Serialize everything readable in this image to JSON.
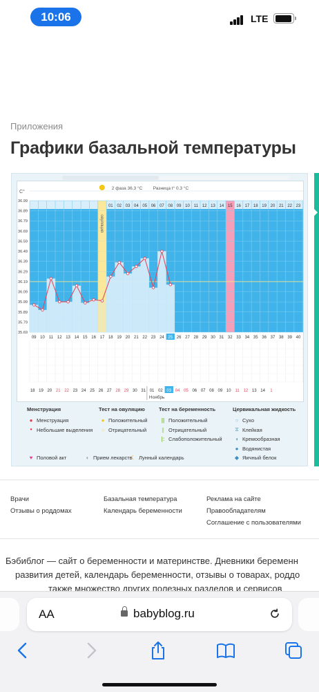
{
  "status": {
    "time": "10:06",
    "network": "LTE"
  },
  "breadcrumb": "Приложения",
  "title": "Графики базальной температуры",
  "chart": {
    "unit": "C°",
    "phase_label": "2 фаза",
    "phase_temp": "36.3 °C",
    "diff_label": "Разница t°",
    "diff_value": "0.3 °C",
    "ovulation_label": "овуляция",
    "month_label": "Ноябрь"
  },
  "chart_data": {
    "type": "line",
    "y_ticks": [
      "36.99",
      "36.89",
      "36.79",
      "36.69",
      "36.59",
      "36.49",
      "36.39",
      "36.29",
      "36.19",
      "36.09",
      "35.99",
      "35.89",
      "35.79",
      "35.69"
    ],
    "ylim": [
      35.69,
      36.99
    ],
    "cycle_days": [
      "01",
      "02",
      "03",
      "04",
      "05",
      "06",
      "07",
      "08",
      "09",
      "10",
      "11",
      "12",
      "13",
      "14",
      "15",
      "16",
      "17",
      "18",
      "19",
      "20",
      "21",
      "22",
      "23",
      "24",
      "25",
      "26",
      "27",
      "28",
      "29",
      "30",
      "31",
      "32",
      "33",
      "34",
      "35",
      "36",
      "37",
      "38",
      "39",
      "40"
    ],
    "cycle_days_top_visible": [
      "01",
      "02",
      "03",
      "04",
      "05",
      "06",
      "07",
      "08",
      "09",
      "10",
      "11",
      "12",
      "13",
      "14",
      "15",
      "16",
      "17",
      "18",
      "19",
      "20",
      "21",
      "22",
      "23",
      "24"
    ],
    "cycle_axis_prefix": [
      "09",
      "10",
      "11",
      "12",
      "13",
      "14",
      "15",
      "16",
      "17",
      "18",
      "19",
      "20",
      "21",
      "22",
      "23",
      "24",
      "25",
      "26",
      "27",
      "28",
      "29",
      "30",
      "31",
      "32",
      "33",
      "34",
      "35",
      "36",
      "37",
      "38",
      "39",
      "40",
      "4"
    ],
    "calendar_dates": [
      "18",
      "19",
      "20",
      "21",
      "22",
      "23",
      "24",
      "25",
      "26",
      "27",
      "28",
      "29",
      "30",
      "31",
      "01",
      "02",
      "03",
      "04",
      "05",
      "06",
      "07",
      "08",
      "09",
      "10",
      "11",
      "12",
      "13",
      "14",
      "1"
    ],
    "calendar_red": [
      "21",
      "22",
      "28",
      "29",
      "04",
      "05",
      "11",
      "12",
      "1"
    ],
    "temperatures": [
      35.96,
      35.91,
      36.22,
      35.99,
      35.99,
      36.15,
      35.98,
      36.01,
      36.0,
      36.24,
      36.38,
      36.27,
      36.34,
      36.42,
      36.13,
      36.49,
      36.16
    ],
    "current_day": "25",
    "current_date": "03",
    "coverline": 36.19
  },
  "legend": {
    "menstruation": {
      "title": "Менструация",
      "items": [
        "Менструация",
        "Небольшие выделения"
      ]
    },
    "ovulation_test": {
      "title": "Тест на овуляцию",
      "items": [
        "Положительный",
        "Отрицательный"
      ]
    },
    "pregnancy_test": {
      "title": "Тест на беременность",
      "items": [
        "Положительный",
        "Отрицательный",
        "Слабоположительный"
      ]
    },
    "cervical": {
      "title": "Цервикальная жидкость",
      "items": [
        "Сухо",
        "Клейкая",
        "Кремообразная",
        "Водянистая",
        "Яичный белок"
      ]
    },
    "bottom": [
      "Половой акт",
      "Прием лекарств",
      "Лунный календарь"
    ]
  },
  "footer": {
    "col1": [
      "Врачи",
      "Отзывы о роддомах"
    ],
    "col2": [
      "Базальная температура",
      "Календарь беременности"
    ],
    "col3": [
      "Реклама на сайте",
      "Правообладателям",
      "Соглашение с пользователями"
    ]
  },
  "about": {
    "line1": "Бэбиблог — сайт о беременности и материнстве. Дневники беременн",
    "line2": "развития детей, календарь беременности, отзывы о товарах, роддо",
    "line3": "также множество других полезных разделов и сервисов"
  },
  "safari": {
    "aa": "AA",
    "url": "babyblog.ru"
  },
  "colors": {
    "chart_blue": "#40b4ea",
    "ovulation_yellow": "#fbe89a",
    "day_pink": "#f5a0b8",
    "grid_light": "#d8eefb",
    "line_red": "#e04a60",
    "time_pill": "#1a73e8",
    "accent_green": "#1abc9c"
  }
}
